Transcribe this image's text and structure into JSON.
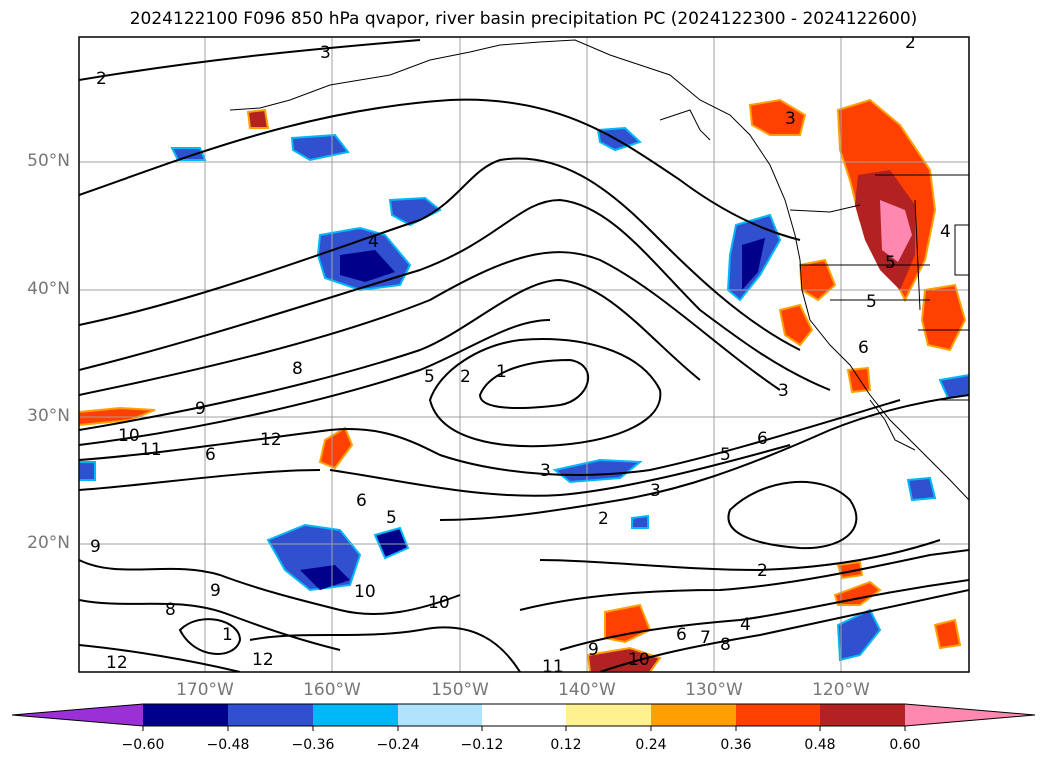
{
  "title": "2024122100 F096 850 hPa qvapor, river basin precipitation PC (2024122300 - 2024122600)",
  "lat_labels": [
    "50°N",
    "40°N",
    "30°N",
    "20°N"
  ],
  "lon_labels": [
    "170°W",
    "160°W",
    "150°W",
    "140°W",
    "130°W",
    "120°W"
  ],
  "colorbar": {
    "ticks": [
      "−0.60",
      "−0.48",
      "−0.36",
      "−0.24",
      "−0.12",
      "0.12",
      "0.24",
      "0.36",
      "0.48",
      "0.60"
    ],
    "colors": [
      "#9b30d6",
      "#00008b",
      "#3050d0",
      "#00b8f8",
      "#b0e4fc",
      "#ffffff",
      "#fff090",
      "#ffa000",
      "#ff4000",
      "#b22222",
      "#ff88b0"
    ]
  },
  "contour_labels": [
    "2",
    "3",
    "4",
    "5",
    "6",
    "8",
    "9",
    "10",
    "11",
    "12",
    "1",
    "2",
    "3",
    "3",
    "5",
    "6",
    "2",
    "2",
    "3",
    "4",
    "5",
    "6",
    "7",
    "8",
    "9",
    "10",
    "11",
    "12",
    "9",
    "8",
    "6",
    "9",
    "10",
    "10",
    "12",
    "1",
    "6",
    "5",
    "3",
    "2",
    "4",
    "5"
  ],
  "map_features": {
    "grid": true,
    "coastlines": true,
    "state_borders": true,
    "line_color": "#000000",
    "grid_color": "#a0a0a0"
  }
}
